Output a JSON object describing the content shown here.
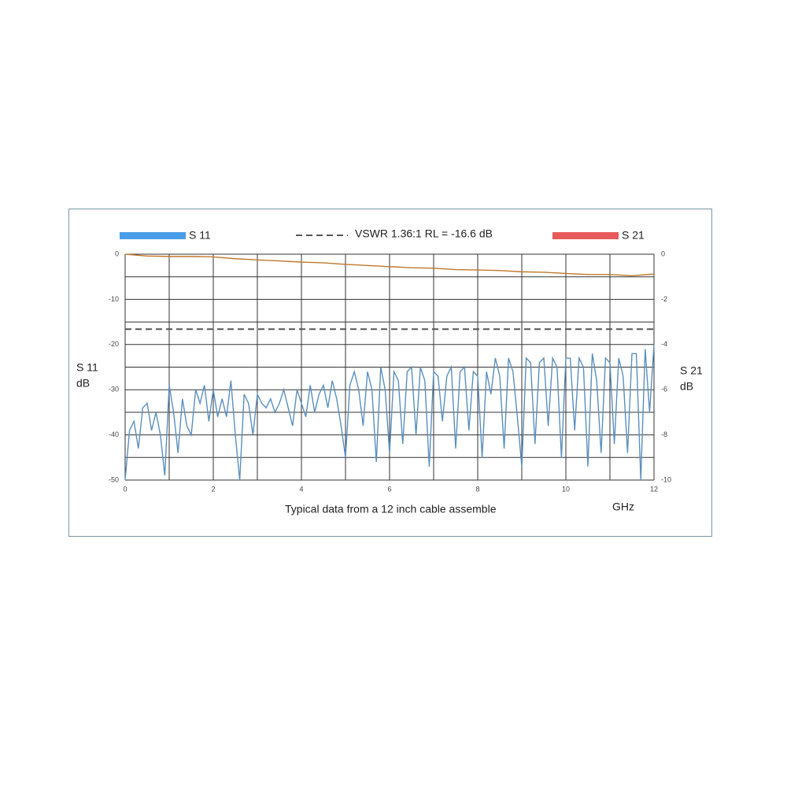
{
  "chart_data": {
    "type": "line",
    "caption": "Typical data from a 12 inch cable assemble",
    "xlabel": "GHz",
    "ylabel": [
      "S 11",
      "dB"
    ],
    "y2label": [
      "S 21",
      "dB"
    ],
    "xlim": [
      0,
      12
    ],
    "xticks": [
      0,
      2,
      4,
      6,
      8,
      10,
      12
    ],
    "xgrid": [
      0,
      1,
      2,
      3,
      4,
      5,
      6,
      7,
      8,
      9,
      10,
      11,
      12
    ],
    "ylim": [
      -50,
      0
    ],
    "yticks": [
      0,
      -10,
      -20,
      -30,
      -40,
      -50
    ],
    "ygrid": [
      0,
      -5,
      -10,
      -15,
      -20,
      -25,
      -30,
      -35,
      -40,
      -45,
      -50
    ],
    "y2lim": [
      -10,
      0
    ],
    "y2ticks": [
      0,
      -2,
      -4,
      -6,
      -8,
      -10
    ],
    "grid": true,
    "reference_line": {
      "name": "VSWR 1.36:1 RL = -16.6 dB",
      "value": -16.6,
      "color": "#555555"
    },
    "series": [
      {
        "name": "S 11",
        "color": "#5b8fc0",
        "legend_color": "#4a9de8",
        "x": [
          0,
          0.1,
          0.2,
          0.3,
          0.4,
          0.5,
          0.6,
          0.7,
          0.8,
          0.9,
          1,
          1.1,
          1.2,
          1.3,
          1.4,
          1.5,
          1.6,
          1.7,
          1.8,
          1.9,
          2,
          2.1,
          2.2,
          2.3,
          2.4,
          2.5,
          2.6,
          2.7,
          2.8,
          2.9,
          3,
          3.1,
          3.2,
          3.3,
          3.4,
          3.5,
          3.6,
          3.7,
          3.8,
          3.9,
          4,
          4.1,
          4.2,
          4.3,
          4.4,
          4.5,
          4.6,
          4.7,
          4.8,
          4.9,
          5,
          5.1,
          5.2,
          5.3,
          5.4,
          5.5,
          5.6,
          5.7,
          5.8,
          5.9,
          6,
          6.1,
          6.2,
          6.3,
          6.4,
          6.5,
          6.6,
          6.7,
          6.8,
          6.9,
          7,
          7.1,
          7.2,
          7.3,
          7.4,
          7.5,
          7.6,
          7.7,
          7.8,
          7.9,
          8,
          8.1,
          8.2,
          8.3,
          8.4,
          8.5,
          8.6,
          8.7,
          8.8,
          8.9,
          9,
          9.1,
          9.2,
          9.3,
          9.4,
          9.5,
          9.6,
          9.7,
          9.8,
          9.9,
          10,
          10.1,
          10.2,
          10.3,
          10.4,
          10.5,
          10.6,
          10.7,
          10.8,
          10.9,
          11,
          11.1,
          11.2,
          11.3,
          11.4,
          11.5,
          11.6,
          11.7,
          11.8,
          11.9,
          12
        ],
        "values": [
          -50,
          -39,
          -37,
          -43,
          -34,
          -33,
          -39,
          -35,
          -40,
          -49,
          -29,
          -35,
          -44,
          -32,
          -38,
          -40,
          -30,
          -33,
          -29,
          -37,
          -30,
          -36,
          -32,
          -36,
          -28,
          -40,
          -50,
          -31,
          -33,
          -40,
          -31,
          -33,
          -34,
          -32,
          -35,
          -33,
          -30,
          -34,
          -38,
          -30,
          -33,
          -36,
          -29,
          -35,
          -31,
          -29,
          -34,
          -28,
          -32,
          -38,
          -45,
          -29,
          -26,
          -30,
          -38,
          -26,
          -30,
          -46,
          -25,
          -30,
          -44,
          -26,
          -28,
          -42,
          -26,
          -25,
          -40,
          -25,
          -28,
          -47,
          -26,
          -27,
          -37,
          -27,
          -25,
          -43,
          -26,
          -25,
          -39,
          -26,
          -27,
          -45,
          -26,
          -31,
          -23,
          -27,
          -43,
          -23,
          -26,
          -36,
          -47,
          -23,
          -24,
          -42,
          -24,
          -23,
          -38,
          -23,
          -25,
          -45,
          -23,
          -23,
          -39,
          -23,
          -25,
          -47,
          -22,
          -28,
          -44,
          -23,
          -24,
          -42,
          -23,
          -27,
          -44,
          -22,
          -22,
          -50,
          -21,
          -35,
          -20
        ]
      },
      {
        "name": "S 21",
        "color": "#c0782c",
        "legend_color": "#e85a5a",
        "axis": "y2",
        "x": [
          0,
          0.5,
          1,
          1.5,
          2,
          2.5,
          3,
          3.5,
          4,
          4.5,
          5,
          5.5,
          6,
          6.5,
          7,
          7.5,
          8,
          8.5,
          9,
          9.5,
          10,
          10.5,
          11,
          11.5,
          12
        ],
        "values": [
          0,
          -0.08,
          -0.1,
          -0.1,
          -0.12,
          -0.2,
          -0.25,
          -0.3,
          -0.35,
          -0.38,
          -0.45,
          -0.5,
          -0.55,
          -0.6,
          -0.62,
          -0.68,
          -0.7,
          -0.72,
          -0.78,
          -0.8,
          -0.85,
          -0.9,
          -0.9,
          -0.95,
          -0.88
        ]
      }
    ]
  }
}
